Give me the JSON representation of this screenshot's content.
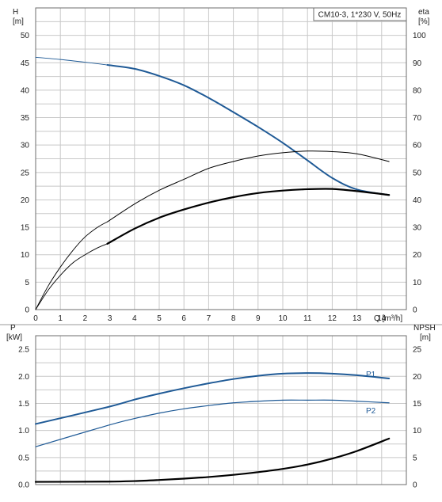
{
  "chart_data": [
    {
      "type": "line",
      "title": "CM10-3, 1*230 V, 50Hz",
      "xlabel": "Q [m³/h]",
      "x_ticks": [
        "0",
        "1",
        "2",
        "3",
        "4",
        "5",
        "6",
        "7",
        "8",
        "9",
        "10",
        "11",
        "12",
        "13",
        "14"
      ],
      "ylabel_left": "H",
      "ylabel_left_unit": "[m]",
      "ylabel_right": "eta",
      "ylabel_right_unit": "[%]",
      "xlim": [
        0,
        15
      ],
      "ylim_left": [
        0,
        55
      ],
      "ylim_right": [
        0,
        110
      ],
      "y_left_ticks": [
        "0",
        "5",
        "10",
        "15",
        "20",
        "25",
        "30",
        "35",
        "40",
        "45",
        "50"
      ],
      "y_right_ticks": [
        "0",
        "10",
        "20",
        "30",
        "40",
        "50",
        "60",
        "70",
        "80",
        "90",
        "100"
      ],
      "grid": true,
      "series": [
        {
          "axis": "left",
          "role": "head-extrapolated",
          "color": "#1f5a96",
          "points": [
            [
              0,
              46.0
            ],
            [
              1,
              45.6
            ],
            [
              2,
              45.1
            ],
            [
              2.9,
              44.6
            ]
          ]
        },
        {
          "axis": "left",
          "role": "head",
          "color": "#1f5a96",
          "points": [
            [
              2.9,
              44.6
            ],
            [
              4,
              43.9
            ],
            [
              5,
              42.6
            ],
            [
              6,
              40.9
            ],
            [
              7,
              38.6
            ],
            [
              8,
              36.0
            ],
            [
              9,
              33.3
            ],
            [
              10,
              30.4
            ],
            [
              11,
              27.2
            ],
            [
              12,
              24.0
            ],
            [
              13,
              21.9
            ],
            [
              14.3,
              20.9
            ]
          ]
        },
        {
          "axis": "right",
          "role": "efficiency-total-extrapolated",
          "color": "#000000",
          "points": [
            [
              0,
              0
            ],
            [
              0.5,
              8.5
            ],
            [
              1,
              15.5
            ],
            [
              1.5,
              21.5
            ],
            [
              2,
              26.5
            ],
            [
              2.5,
              30.0
            ],
            [
              2.9,
              32.0
            ]
          ]
        },
        {
          "axis": "right",
          "role": "efficiency-total",
          "color": "#000000",
          "points": [
            [
              2.9,
              32.0
            ],
            [
              4,
              38.5
            ],
            [
              5,
              43.5
            ],
            [
              6,
              47.5
            ],
            [
              7,
              51.5
            ],
            [
              8,
              54.0
            ],
            [
              9,
              56.0
            ],
            [
              10,
              57.2
            ],
            [
              11,
              57.8
            ],
            [
              12,
              57.6
            ],
            [
              13,
              56.8
            ],
            [
              14.3,
              54.0
            ]
          ]
        },
        {
          "axis": "right",
          "role": "efficiency-extrapolated",
          "color": "#000000",
          "points": [
            [
              0,
              0
            ],
            [
              0.5,
              7.0
            ],
            [
              1,
              12.5
            ],
            [
              1.5,
              17.0
            ],
            [
              2,
              20.0
            ],
            [
              2.5,
              22.5
            ],
            [
              2.9,
              24.0
            ]
          ]
        },
        {
          "axis": "right",
          "role": "efficiency",
          "color": "#000000",
          "points": [
            [
              2.9,
              24.0
            ],
            [
              4,
              29.5
            ],
            [
              5,
              33.5
            ],
            [
              6,
              36.5
            ],
            [
              7,
              39.0
            ],
            [
              8,
              41.0
            ],
            [
              9,
              42.5
            ],
            [
              10,
              43.4
            ],
            [
              11,
              43.9
            ],
            [
              12,
              44.0
            ],
            [
              13,
              43.2
            ],
            [
              14.3,
              41.8
            ]
          ]
        }
      ]
    },
    {
      "type": "line",
      "ylabel_left": "P",
      "ylabel_left_unit": "[kW]",
      "ylabel_right": "NPSH",
      "ylabel_right_unit": "[m]",
      "xlim": [
        0,
        15
      ],
      "ylim_left": [
        0,
        2.75
      ],
      "ylim_right": [
        0,
        27.5
      ],
      "y_left_ticks": [
        "0.0",
        "0.5",
        "1.0",
        "1.5",
        "2.0",
        "2.5"
      ],
      "y_right_ticks": [
        "0",
        "5",
        "10",
        "15",
        "20",
        "25"
      ],
      "grid": true,
      "series": [
        {
          "name": "P1",
          "axis": "left",
          "color": "#1f5a96",
          "points": [
            [
              0,
              1.12
            ],
            [
              2.9,
              1.43
            ],
            [
              4,
              1.57
            ],
            [
              5,
              1.68
            ],
            [
              6,
              1.78
            ],
            [
              7,
              1.87
            ],
            [
              8,
              1.95
            ],
            [
              9,
              2.01
            ],
            [
              10,
              2.05
            ],
            [
              11,
              2.06
            ],
            [
              12,
              2.05
            ],
            [
              13,
              2.02
            ],
            [
              14.3,
              1.96
            ]
          ]
        },
        {
          "name": "P2",
          "axis": "left",
          "color": "#1f5a96",
          "points": [
            [
              0,
              0.7
            ],
            [
              2.9,
              1.09
            ],
            [
              4,
              1.22
            ],
            [
              5,
              1.32
            ],
            [
              6,
              1.4
            ],
            [
              7,
              1.46
            ],
            [
              8,
              1.51
            ],
            [
              9,
              1.54
            ],
            [
              10,
              1.56
            ],
            [
              11,
              1.56
            ],
            [
              12,
              1.56
            ],
            [
              13,
              1.54
            ],
            [
              14.3,
              1.51
            ]
          ]
        },
        {
          "axis": "right",
          "role": "npsh",
          "color": "#000000",
          "points": [
            [
              0,
              0.5
            ],
            [
              2.9,
              0.55
            ],
            [
              4,
              0.65
            ],
            [
              5,
              0.85
            ],
            [
              6,
              1.1
            ],
            [
              7,
              1.4
            ],
            [
              8,
              1.8
            ],
            [
              9,
              2.3
            ],
            [
              10,
              2.9
            ],
            [
              11,
              3.7
            ],
            [
              12,
              4.8
            ],
            [
              13,
              6.2
            ],
            [
              14.3,
              8.5
            ]
          ]
        }
      ]
    }
  ]
}
